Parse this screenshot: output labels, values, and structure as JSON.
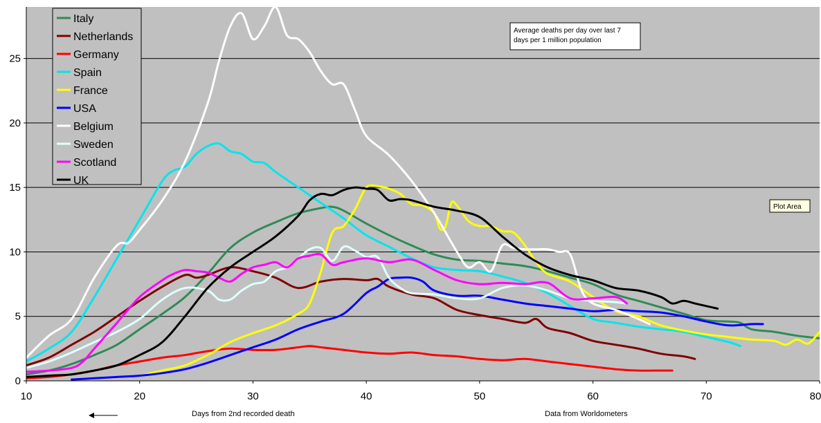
{
  "chart_data": {
    "type": "line",
    "title": "Average deaths per day over last 7 days per 1 million population",
    "title_lines": [
      "Average deaths per day over last 7",
      "days per 1 million population"
    ],
    "xlabel": "Days from 2nd recorded death",
    "source": "Data from Worldometers",
    "tooltip": "Plot Area",
    "xlim": [
      10,
      80
    ],
    "ylim": [
      0,
      29
    ],
    "xticks": [
      10,
      20,
      30,
      40,
      50,
      60,
      70,
      80
    ],
    "yticks": [
      0,
      5,
      10,
      15,
      20,
      25
    ],
    "grid": true,
    "legend_position": "top-left",
    "series": [
      {
        "name": "Italy",
        "color": "#2e8b57",
        "x": [
          10,
          12,
          14,
          16,
          18,
          20,
          22,
          24,
          26,
          28,
          30,
          32,
          34,
          36,
          37,
          38,
          40,
          42,
          44,
          46,
          48,
          50,
          52,
          54,
          56,
          58,
          60,
          62,
          64,
          66,
          68,
          70,
          72,
          73,
          74,
          76,
          78,
          80
        ],
        "y": [
          0.5,
          0.8,
          1.3,
          2.0,
          2.8,
          4.0,
          5.2,
          6.5,
          8.3,
          10.3,
          11.5,
          12.3,
          13.0,
          13.4,
          13.5,
          13.2,
          12.2,
          11.3,
          10.5,
          9.8,
          9.4,
          9.3,
          9.1,
          8.9,
          8.5,
          8.0,
          7.5,
          6.7,
          6.2,
          5.7,
          5.2,
          4.7,
          4.6,
          4.5,
          4.0,
          3.8,
          3.5,
          3.3
        ]
      },
      {
        "name": "Netherlands",
        "color": "#800000",
        "x": [
          10,
          12,
          14,
          16,
          18,
          20,
          22,
          24,
          25,
          26,
          28,
          30,
          32,
          34,
          36,
          38,
          40,
          41,
          42,
          44,
          46,
          48,
          50,
          52,
          54,
          55,
          56,
          58,
          60,
          62,
          64,
          66,
          68,
          69
        ],
        "y": [
          1.2,
          1.8,
          2.8,
          3.8,
          5.0,
          6.2,
          7.3,
          8.2,
          8.0,
          8.2,
          8.8,
          8.5,
          8.0,
          7.2,
          7.7,
          7.9,
          7.8,
          7.9,
          7.3,
          6.7,
          6.4,
          5.5,
          5.1,
          4.8,
          4.5,
          4.8,
          4.1,
          3.7,
          3.1,
          2.8,
          2.5,
          2.1,
          1.9,
          1.7
        ]
      },
      {
        "name": "Germany",
        "color": "#ff0000",
        "x": [
          10,
          12,
          14,
          16,
          18,
          20,
          22,
          24,
          26,
          28,
          30,
          32,
          34,
          35,
          36,
          38,
          40,
          42,
          44,
          46,
          48,
          50,
          52,
          54,
          56,
          58,
          60,
          62,
          64,
          66,
          67
        ],
        "y": [
          0.2,
          0.3,
          0.5,
          0.8,
          1.2,
          1.5,
          1.8,
          2.0,
          2.3,
          2.5,
          2.4,
          2.4,
          2.6,
          2.7,
          2.6,
          2.4,
          2.2,
          2.1,
          2.2,
          2.0,
          1.9,
          1.7,
          1.6,
          1.7,
          1.5,
          1.3,
          1.1,
          0.9,
          0.8,
          0.8,
          0.8
        ]
      },
      {
        "name": "Spain",
        "color": "#00e5ee",
        "x": [
          10,
          12,
          14,
          16,
          18,
          20,
          22,
          23,
          24,
          25,
          26,
          27,
          28,
          29,
          30,
          31,
          32,
          34,
          36,
          38,
          40,
          42,
          44,
          46,
          48,
          50,
          52,
          54,
          56,
          58,
          60,
          62,
          64,
          66,
          68,
          70,
          72,
          73
        ],
        "y": [
          1.5,
          2.5,
          3.8,
          6.5,
          9.5,
          12.5,
          15.5,
          16.3,
          16.6,
          17.6,
          18.2,
          18.4,
          17.8,
          17.6,
          17.0,
          16.9,
          16.2,
          15.0,
          13.8,
          12.6,
          11.3,
          10.4,
          9.5,
          8.8,
          8.6,
          8.5,
          8.1,
          7.6,
          6.8,
          5.8,
          4.8,
          4.5,
          4.2,
          4.0,
          3.8,
          3.4,
          3.0,
          2.7
        ]
      },
      {
        "name": "France",
        "color": "#ffff00",
        "x": [
          20,
          22,
          24,
          26,
          28,
          30,
          32,
          34,
          35,
          36,
          37,
          38,
          39,
          40,
          41,
          42,
          43,
          44,
          45,
          46,
          46.5,
          47,
          47.5,
          48,
          49,
          50,
          51,
          52,
          53,
          54,
          55,
          56,
          58,
          60,
          62,
          64,
          66,
          68,
          70,
          72,
          74,
          76,
          77,
          78,
          79,
          80
        ],
        "y": [
          0.4,
          0.8,
          1.2,
          2.0,
          3.0,
          3.7,
          4.3,
          5.2,
          6.0,
          8.5,
          11.5,
          12.0,
          13.3,
          15.0,
          15.1,
          14.9,
          14.5,
          13.7,
          13.6,
          13.0,
          11.8,
          12.0,
          13.8,
          13.6,
          12.4,
          12.0,
          12.0,
          11.6,
          11.5,
          10.5,
          9.2,
          8.3,
          7.7,
          6.5,
          5.4,
          5.0,
          4.3,
          3.9,
          3.6,
          3.4,
          3.2,
          3.1,
          2.8,
          3.2,
          2.9,
          3.8
        ]
      },
      {
        "name": "USA",
        "color": "#0000ff",
        "x": [
          14,
          16,
          18,
          20,
          22,
          24,
          26,
          28,
          30,
          32,
          34,
          36,
          38,
          40,
          41,
          42,
          43,
          44,
          45,
          46,
          48,
          50,
          52,
          54,
          56,
          58,
          60,
          62,
          64,
          66,
          68,
          70,
          72,
          74,
          75
        ],
        "y": [
          0.1,
          0.2,
          0.3,
          0.4,
          0.6,
          0.9,
          1.4,
          2.0,
          2.6,
          3.2,
          4.0,
          4.6,
          5.2,
          6.8,
          7.3,
          7.9,
          8.0,
          8.0,
          7.7,
          7.0,
          6.6,
          6.6,
          6.3,
          6.0,
          5.8,
          5.6,
          5.4,
          5.5,
          5.4,
          5.3,
          5.0,
          4.6,
          4.3,
          4.4,
          4.4
        ]
      },
      {
        "name": "Belgium",
        "color": "#ffffff",
        "x": [
          10,
          12,
          14,
          16,
          18,
          19,
          20,
          22,
          24,
          26,
          27,
          28,
          29,
          30,
          31,
          32,
          33,
          34,
          35,
          36,
          37,
          38,
          39,
          40,
          42,
          44,
          46,
          48,
          49,
          50,
          51,
          52,
          53,
          54,
          55,
          56,
          57,
          58,
          59,
          60,
          62,
          64,
          65
        ],
        "y": [
          1.8,
          3.5,
          4.8,
          8.0,
          10.5,
          10.7,
          11.7,
          14.0,
          17.0,
          21.5,
          24.8,
          27.5,
          28.5,
          26.5,
          27.5,
          29.0,
          26.8,
          26.5,
          25.5,
          24.0,
          23.0,
          23.0,
          21.0,
          19.0,
          17.5,
          15.5,
          13.0,
          10.0,
          8.8,
          9.2,
          8.5,
          10.5,
          10.3,
          10.2,
          10.2,
          10.2,
          10.0,
          9.8,
          7.0,
          6.0,
          5.5,
          4.8,
          4.4
        ]
      },
      {
        "name": "Sweden",
        "color": "#e0ffff",
        "x": [
          10,
          12,
          14,
          16,
          18,
          20,
          22,
          24,
          26,
          27,
          28,
          29,
          30,
          31,
          32,
          33,
          34,
          35,
          36,
          37,
          38,
          39,
          40,
          41,
          42,
          43,
          44,
          46,
          48,
          50,
          52,
          54,
          56,
          58,
          60,
          62,
          63
        ],
        "y": [
          1.0,
          1.5,
          2.2,
          3.0,
          3.8,
          4.8,
          6.3,
          7.2,
          7.0,
          6.3,
          6.3,
          7.0,
          7.5,
          7.7,
          8.5,
          8.8,
          9.5,
          10.2,
          10.3,
          9.3,
          10.4,
          10.1,
          9.6,
          9.6,
          8.0,
          7.2,
          6.8,
          6.7,
          6.4,
          6.4,
          7.2,
          7.4,
          7.0,
          6.4,
          6.2,
          6.1,
          6.0
        ]
      },
      {
        "name": "Scotland",
        "color": "#ff00ff",
        "x": [
          10,
          12,
          14,
          15,
          16,
          18,
          20,
          22,
          23,
          24,
          25,
          26,
          27,
          28,
          29,
          30,
          31,
          32,
          33,
          34,
          35,
          36,
          37,
          38,
          40,
          42,
          44,
          46,
          48,
          50,
          52,
          54,
          56,
          58,
          60,
          62,
          63
        ],
        "y": [
          0.7,
          0.8,
          1.0,
          1.5,
          2.5,
          4.5,
          6.5,
          7.8,
          8.3,
          8.6,
          8.5,
          8.4,
          8.0,
          7.7,
          8.3,
          8.8,
          9.0,
          9.2,
          8.8,
          9.5,
          9.7,
          9.8,
          9.0,
          9.2,
          9.5,
          9.2,
          9.4,
          8.6,
          7.8,
          7.5,
          7.6,
          7.5,
          7.6,
          6.4,
          6.4,
          6.5,
          6.0
        ]
      },
      {
        "name": "UK",
        "color": "#000000",
        "x": [
          10,
          12,
          14,
          16,
          18,
          20,
          22,
          24,
          26,
          28,
          30,
          32,
          34,
          35,
          36,
          37,
          38,
          39,
          40,
          41,
          42,
          43,
          44,
          46,
          48,
          50,
          52,
          54,
          56,
          58,
          60,
          62,
          64,
          66,
          67,
          68,
          69,
          70,
          71
        ],
        "y": [
          0.3,
          0.4,
          0.5,
          0.8,
          1.2,
          2.0,
          3.0,
          5.0,
          7.2,
          8.8,
          10.0,
          11.2,
          12.8,
          14.0,
          14.5,
          14.4,
          14.8,
          15.0,
          14.9,
          14.8,
          14.0,
          14.1,
          14.0,
          13.5,
          13.2,
          12.7,
          11.2,
          9.8,
          8.8,
          8.2,
          7.8,
          7.2,
          7.0,
          6.5,
          6.0,
          6.2,
          6.0,
          5.8,
          5.6
        ]
      }
    ]
  }
}
